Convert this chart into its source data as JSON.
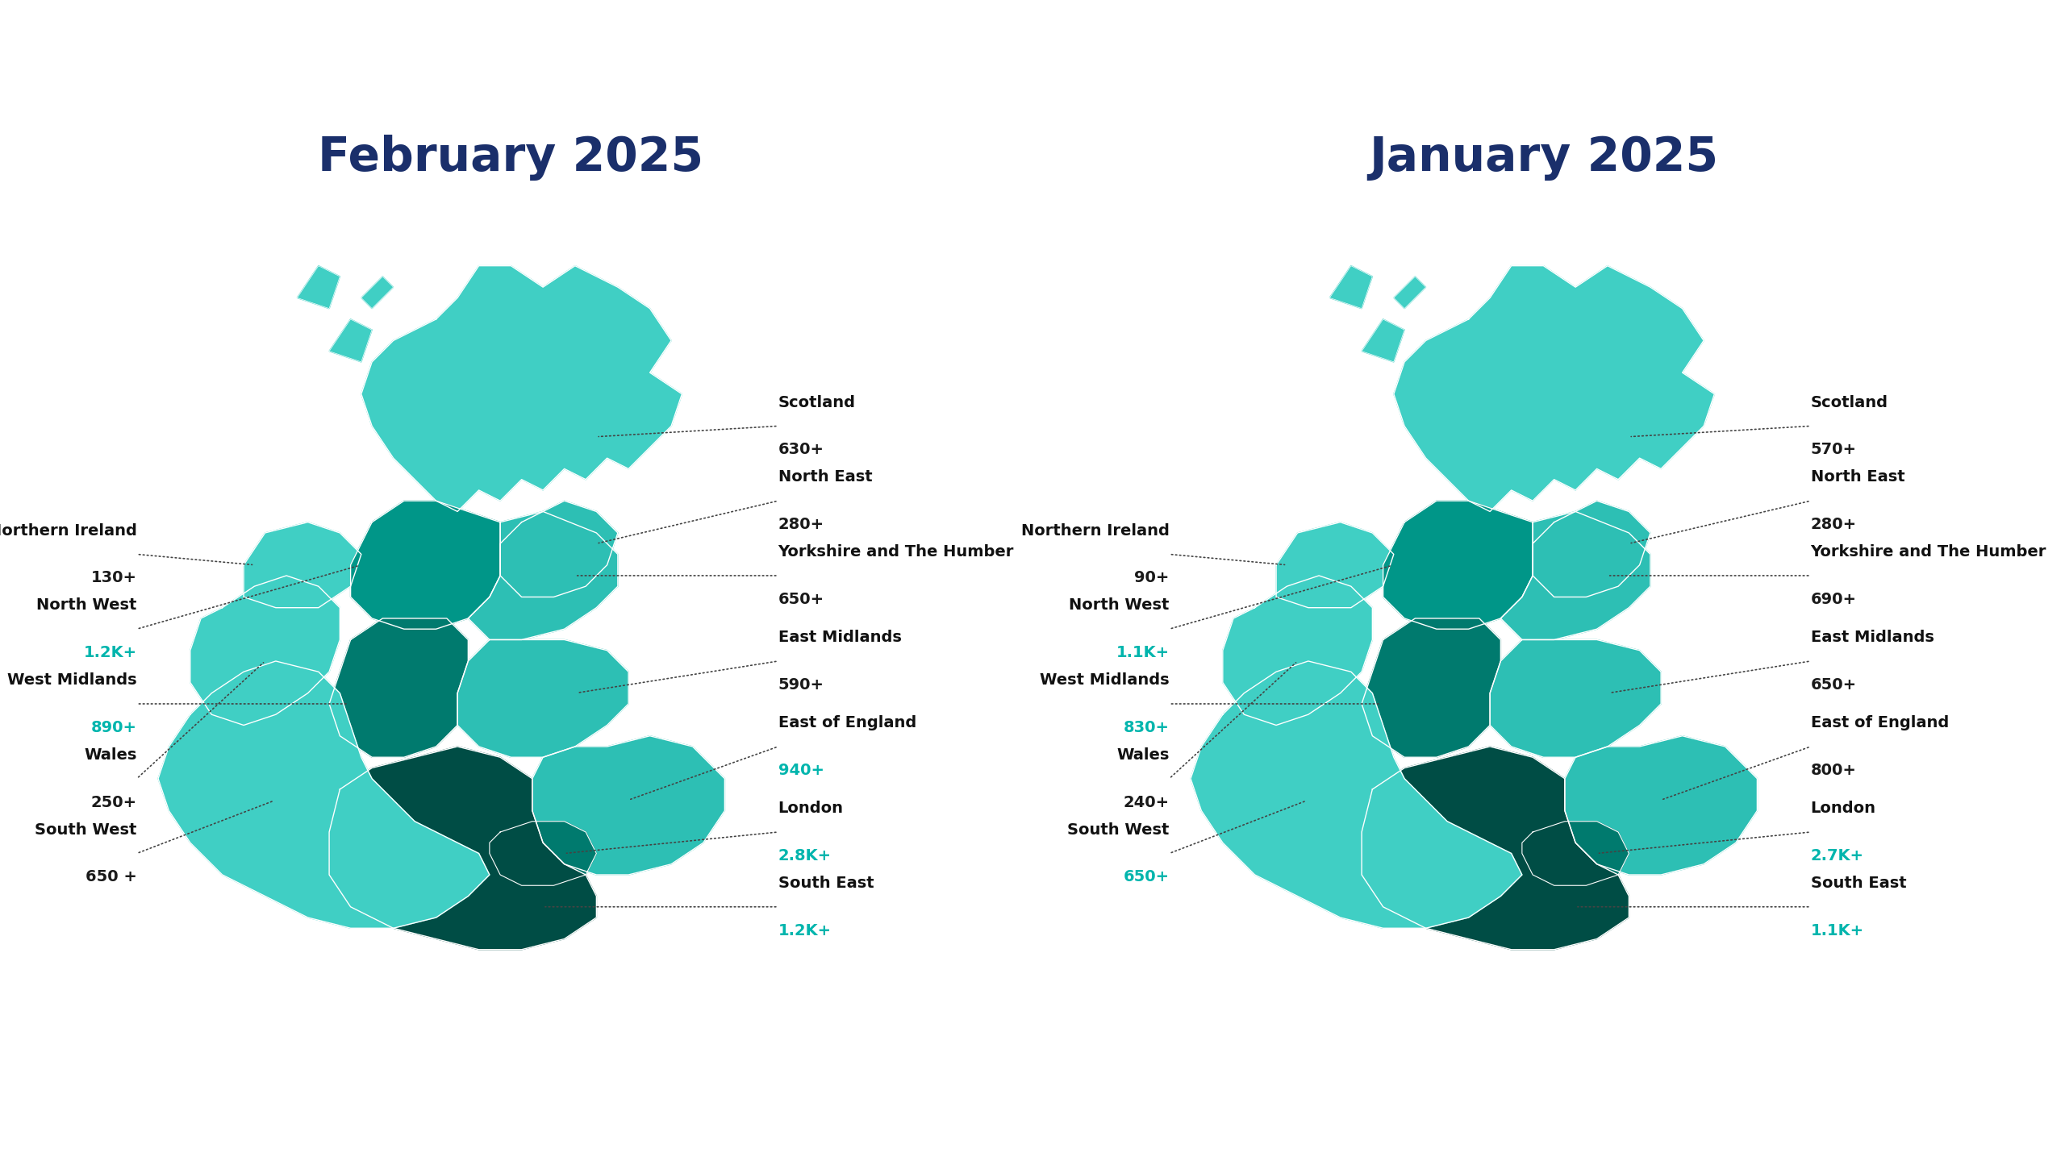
{
  "title_feb": "February 2025",
  "title_jan": "January 2025",
  "title_color": "#1a2f6b",
  "background_color": "#ffffff",
  "feb_regions": {
    "Scotland": {
      "value": "630+",
      "highlight": false
    },
    "North East": {
      "value": "280+",
      "highlight": false
    },
    "Yorkshire and The Humber": {
      "value": "650+",
      "highlight": false
    },
    "East Midlands": {
      "value": "590+",
      "highlight": false
    },
    "East of England": {
      "value": "940+",
      "highlight": true
    },
    "London": {
      "value": "2.8K+",
      "highlight": true
    },
    "South East": {
      "value": "1.2K+",
      "highlight": true
    },
    "South West": {
      "value": "650 +",
      "highlight": false
    },
    "Wales": {
      "value": "250+",
      "highlight": false
    },
    "West Midlands": {
      "value": "890+",
      "highlight": true
    },
    "North West": {
      "value": "1.2K+",
      "highlight": true
    },
    "Northern Ireland": {
      "value": "130+",
      "highlight": false
    }
  },
  "jan_regions": {
    "Scotland": {
      "value": "570+",
      "highlight": false
    },
    "North East": {
      "value": "280+",
      "highlight": false
    },
    "Yorkshire and The Humber": {
      "value": "690+",
      "highlight": false
    },
    "East Midlands": {
      "value": "650+",
      "highlight": false
    },
    "East of England": {
      "value": "800+",
      "highlight": false
    },
    "London": {
      "value": "2.7K+",
      "highlight": true
    },
    "South East": {
      "value": "1.1K+",
      "highlight": true
    },
    "South West": {
      "value": "650+",
      "highlight": true
    },
    "Wales": {
      "value": "240+",
      "highlight": false
    },
    "West Midlands": {
      "value": "830+",
      "highlight": true
    },
    "North West": {
      "value": "1.1K+",
      "highlight": true
    },
    "Northern Ireland": {
      "value": "90+",
      "highlight": false
    }
  },
  "highlight_color": "#00b5ad",
  "normal_text_color": "#1a1a1a",
  "region_colors": {
    "scotland": "#40cfc4",
    "northern_ireland": "#40cfc4",
    "north_east": "#2dbfb4",
    "north_west": "#009688",
    "yorkshire": "#2dbfb4",
    "east_midlands": "#2dbfb4",
    "west_midlands": "#007a6e",
    "wales": "#40cfc4",
    "east_of_england": "#2dbfb4",
    "london": "#007a6e",
    "south_east": "#004d45",
    "south_west": "#40cfc4"
  }
}
